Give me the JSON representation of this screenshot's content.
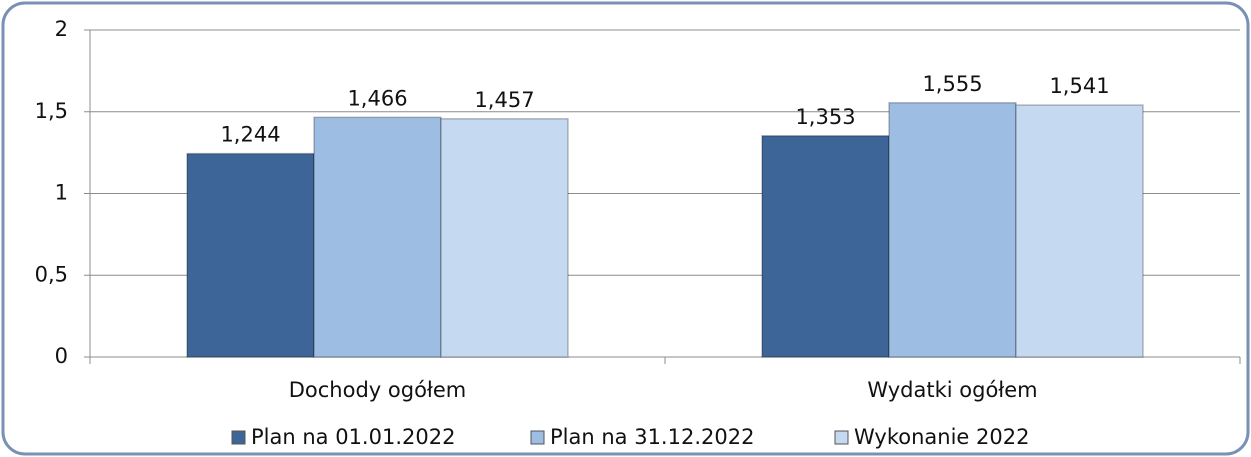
{
  "chart_data": {
    "type": "bar",
    "categories": [
      "Dochody ogółem",
      "Wydatki ogółem"
    ],
    "series": [
      {
        "name": "Plan na 01.01.2022",
        "color": "#3d6597",
        "values": [
          1.244,
          1.353
        ],
        "value_labels": [
          "1,244",
          "1,353"
        ]
      },
      {
        "name": "Plan na 31.12.2022",
        "color": "#9dbde3",
        "values": [
          1.466,
          1.555
        ],
        "value_labels": [
          "1,466",
          "1,555"
        ]
      },
      {
        "name": "Wykonanie 2022",
        "color": "#c5d9f1",
        "values": [
          1.457,
          1.541
        ],
        "value_labels": [
          "1,457",
          "1,541"
        ]
      }
    ],
    "ylim": [
      0,
      2
    ],
    "yticks": [
      0,
      {
        "value": 0.5,
        "label": "0,5"
      },
      1,
      {
        "value": 1.5,
        "label": "1,5"
      },
      2
    ],
    "grid": true,
    "legend": "bottom"
  }
}
